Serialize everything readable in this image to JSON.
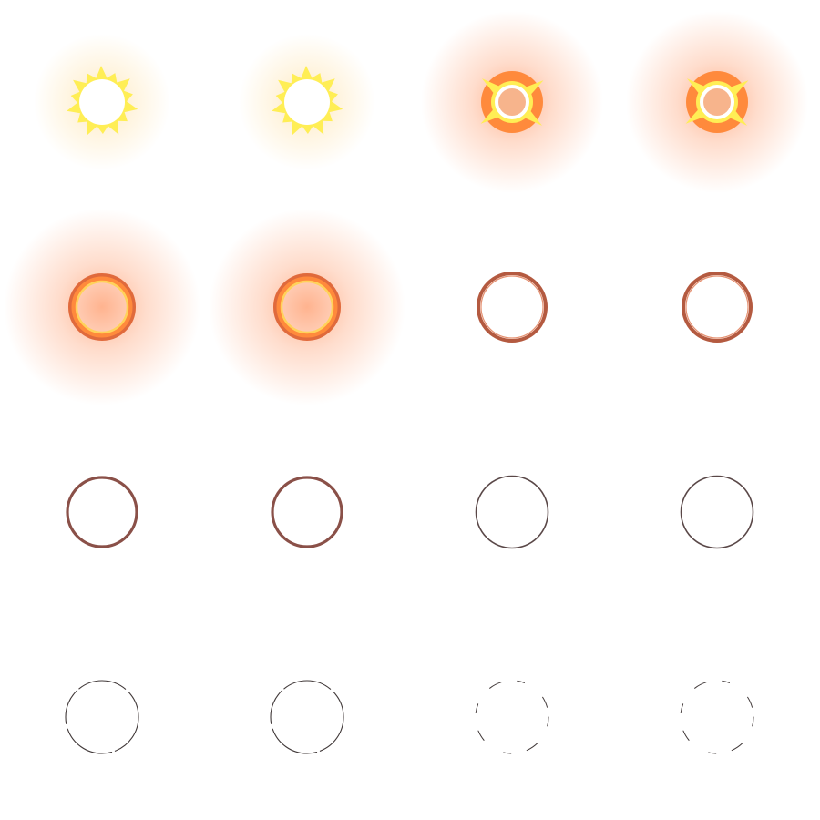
{
  "spritesheet": {
    "grid": {
      "columns": 4,
      "rows": 4
    },
    "colors": {
      "core_white": "#ffffff",
      "spark_yellow": "#ffee55",
      "flash_orange": "#ff8a3c",
      "core_peach": "#f7b48c",
      "ring_orange": "#e06a3c",
      "ring_inner_yellow": "#ffd25a",
      "ring_rust": "#b45a40",
      "ring_mauve": "#8a5048",
      "ring_dark": "#5a4848",
      "ring_faint": "#403838"
    },
    "frames": [
      {
        "stage": "flash-core",
        "glow": "yellow",
        "sparks": true
      },
      {
        "stage": "flash-core",
        "glow": "yellow",
        "sparks": true
      },
      {
        "stage": "flash-orange",
        "glow": "orange",
        "sparks": true
      },
      {
        "stage": "flash-orange",
        "glow": "orange",
        "sparks": true
      },
      {
        "stage": "glowing-ring",
        "glow": "orange",
        "sparks": false
      },
      {
        "stage": "glowing-ring",
        "glow": "orange",
        "sparks": false
      },
      {
        "stage": "rust-ring",
        "glow": "none",
        "sparks": false
      },
      {
        "stage": "rust-ring",
        "glow": "none",
        "sparks": false
      },
      {
        "stage": "mauve-ring",
        "glow": "none",
        "sparks": false
      },
      {
        "stage": "mauve-ring",
        "glow": "none",
        "sparks": false
      },
      {
        "stage": "thin-ring",
        "glow": "none",
        "sparks": false
      },
      {
        "stage": "thin-ring",
        "glow": "none",
        "sparks": false
      },
      {
        "stage": "fading-ring",
        "glow": "none",
        "sparks": false
      },
      {
        "stage": "fading-ring",
        "glow": "none",
        "sparks": false
      },
      {
        "stage": "broken-ring",
        "glow": "none",
        "sparks": false
      },
      {
        "stage": "broken-ring",
        "glow": "none",
        "sparks": false
      }
    ]
  }
}
